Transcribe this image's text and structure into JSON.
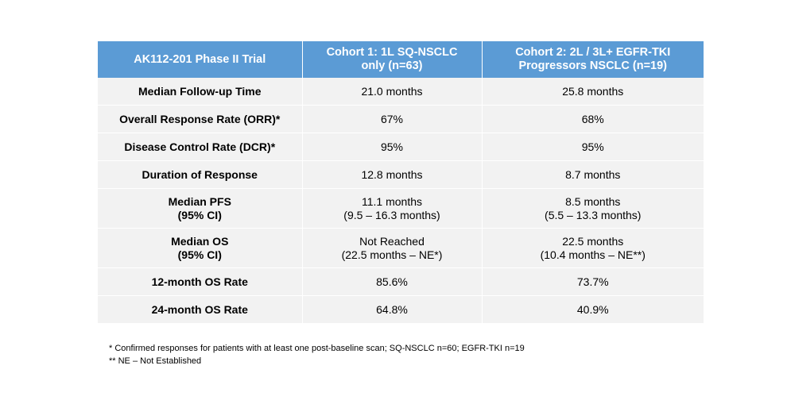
{
  "table": {
    "headers": [
      [
        "AK112-201 Phase II Trial"
      ],
      [
        "Cohort 1: 1L SQ-NSCLC",
        "only (n=63)"
      ],
      [
        "Cohort 2: 2L / 3L+ EGFR-TKI",
        "Progressors NSCLC (n=19)"
      ]
    ],
    "rows": [
      {
        "metric": [
          "Median Follow-up Time"
        ],
        "c1": [
          "21.0 months"
        ],
        "c2": [
          "25.8 months"
        ]
      },
      {
        "metric": [
          "Overall Response Rate (ORR)*"
        ],
        "c1": [
          "67%"
        ],
        "c2": [
          "68%"
        ]
      },
      {
        "metric": [
          "Disease Control Rate (DCR)*"
        ],
        "c1": [
          "95%"
        ],
        "c2": [
          "95%"
        ]
      },
      {
        "metric": [
          "Duration of Response"
        ],
        "c1": [
          "12.8 months"
        ],
        "c2": [
          "8.7 months"
        ]
      },
      {
        "metric": [
          "Median PFS",
          "(95% CI)"
        ],
        "c1": [
          "11.1 months",
          "(9.5 – 16.3 months)"
        ],
        "c2": [
          "8.5 months",
          "(5.5 – 13.3 months)"
        ]
      },
      {
        "metric": [
          "Median OS",
          "(95% CI)"
        ],
        "c1": [
          "Not Reached",
          "(22.5 months – NE*)"
        ],
        "c2": [
          "22.5 months",
          "(10.4 months – NE**)"
        ]
      },
      {
        "metric": [
          "12-month OS Rate"
        ],
        "c1": [
          "85.6%"
        ],
        "c2": [
          "73.7%"
        ]
      },
      {
        "metric": [
          "24-month OS Rate"
        ],
        "c1": [
          "64.8%"
        ],
        "c2": [
          "40.9%"
        ]
      }
    ]
  },
  "footnotes": [
    "* Confirmed responses for patients with at least one post-baseline scan; SQ-NSCLC n=60; EGFR-TKI n=19",
    "** NE – Not Established"
  ],
  "colors": {
    "header_bg": "#5b9bd5",
    "cell_bg": "#f2f2f2"
  }
}
